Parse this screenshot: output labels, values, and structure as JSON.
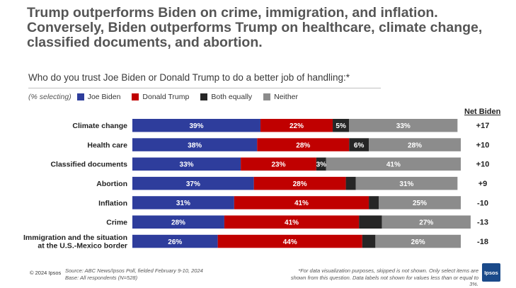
{
  "headline": "Trump outperforms Biden on crime, immigration, and inflation. Conversely, Biden outperforms Trump on healthcare, climate change, classified documents, and abortion.",
  "legend_prefix": "(% selecting)",
  "colors": {
    "biden": "#2e3d9c",
    "trump": "#c00000",
    "both": "#262626",
    "neither": "#8c8c8c"
  },
  "chart_data": {
    "type": "bar",
    "orientation": "horizontal",
    "stacked": true,
    "title": "Who do you trust Joe Biden or Donald Trump to do a better job of handling:*",
    "xlim": [
      0,
      100
    ],
    "categories": [
      "Climate change",
      "Health care",
      "Classified documents",
      "Abortion",
      "Inflation",
      "Crime",
      "Immigration and the situation at the U.S.-Mexico border"
    ],
    "category_lines": [
      [
        "Climate change"
      ],
      [
        "Health care"
      ],
      [
        "Classified documents"
      ],
      [
        "Abortion"
      ],
      [
        "Inflation"
      ],
      [
        "Crime"
      ],
      [
        "Immigration and the situation",
        "at the U.S.-Mexico border"
      ]
    ],
    "series": [
      {
        "name": "Joe Biden",
        "key": "biden",
        "values": [
          39,
          38,
          33,
          37,
          31,
          28,
          26
        ]
      },
      {
        "name": "Donald Trump",
        "key": "trump",
        "values": [
          22,
          28,
          23,
          28,
          41,
          41,
          44
        ]
      },
      {
        "name": "Both equally",
        "key": "both",
        "values": [
          5,
          6,
          3,
          3,
          3,
          7,
          4
        ]
      },
      {
        "name": "Neither",
        "key": "neither",
        "values": [
          33,
          28,
          41,
          31,
          25,
          27,
          26
        ]
      }
    ],
    "data_labels": [
      [
        "39%",
        "22%",
        "5%",
        "33%"
      ],
      [
        "38%",
        "28%",
        "6%",
        "28%"
      ],
      [
        "33%",
        "23%",
        "3%",
        "41%"
      ],
      [
        "37%",
        "28%",
        "",
        "31%"
      ],
      [
        "31%",
        "41%",
        "",
        "25%"
      ],
      [
        "28%",
        "41%",
        "",
        "27%"
      ],
      [
        "26%",
        "44%",
        "",
        "26%"
      ]
    ],
    "net_header": "Net Biden",
    "net_biden": [
      "+17",
      "+10",
      "+10",
      "+9",
      "-10",
      "-13",
      "-18"
    ]
  },
  "footer": {
    "copyright": "© 2024 Ipsos",
    "source_line1": "Source: ABC News/Ipsos Poll, fielded February 9-10, 2024",
    "source_line2": "Base: All respondents (N=528)",
    "note": "*For data visualization purposes, skipped is not shown. Only select items are shown from this question. Data labels not shown for values less than or equal to 3%.",
    "logo": "Ipsos"
  }
}
